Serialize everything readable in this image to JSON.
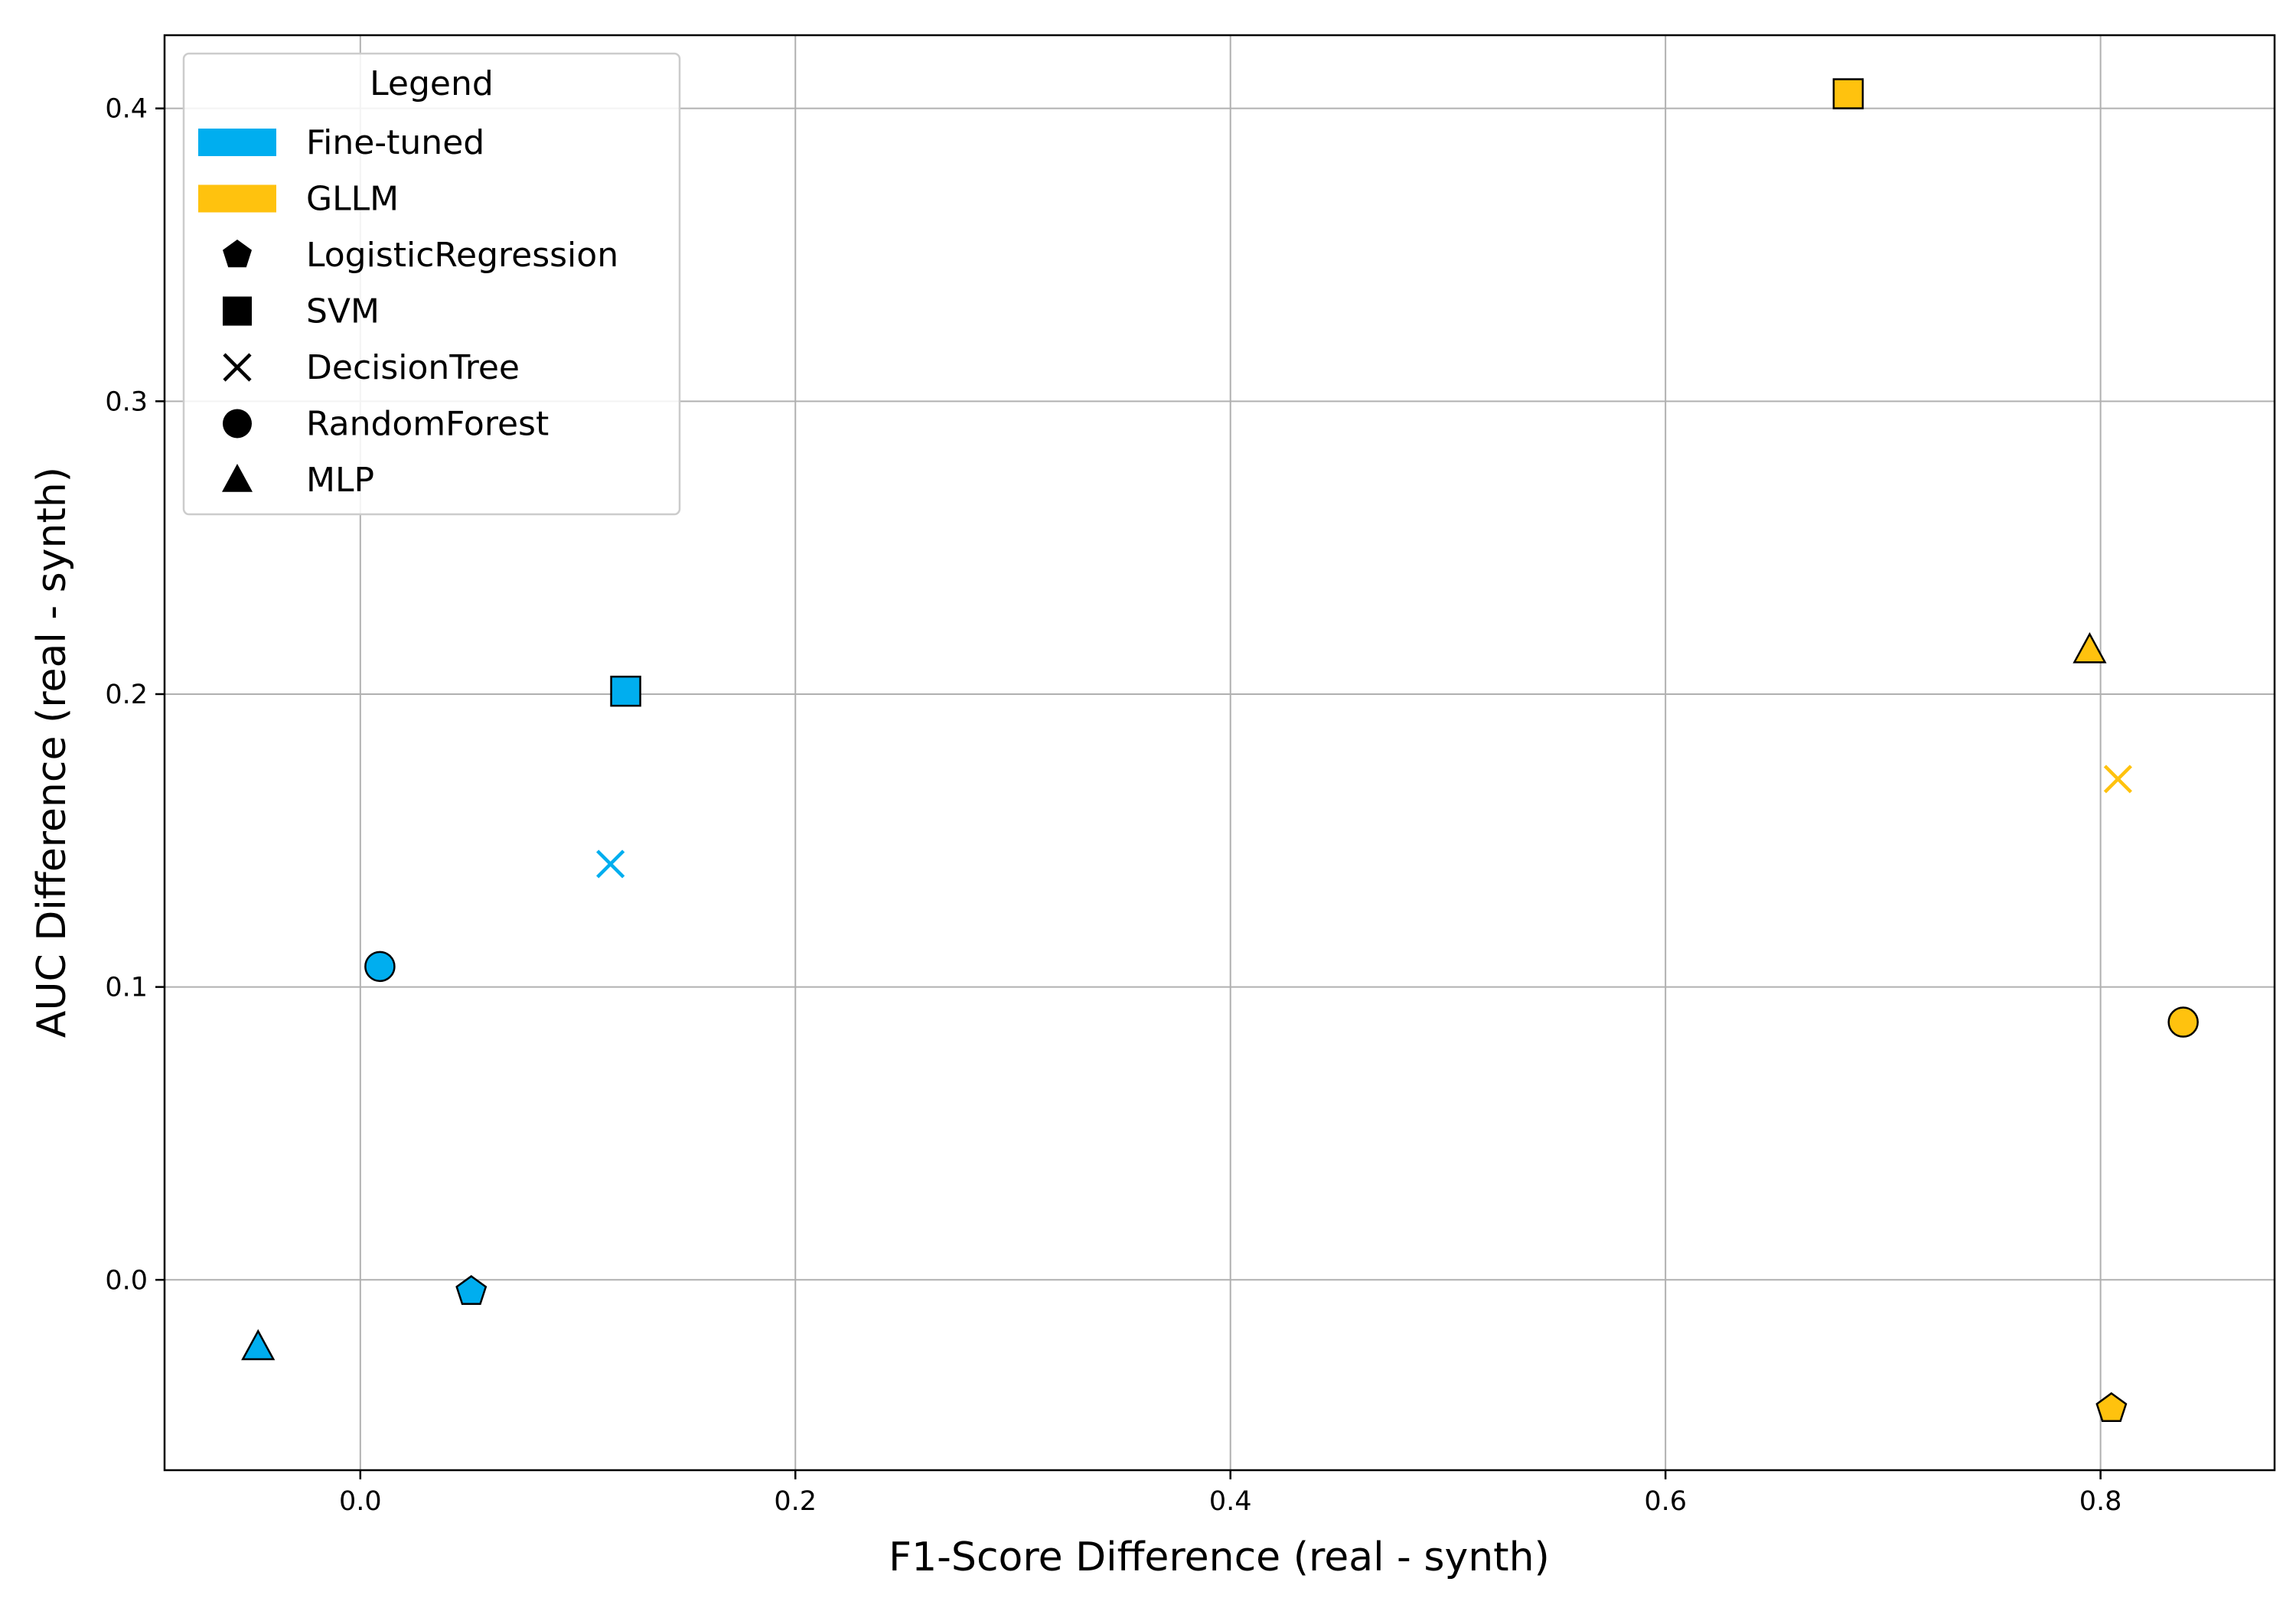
{
  "chart_data": {
    "type": "scatter",
    "xlabel": "F1-Score Difference (real - synth)",
    "ylabel": "AUC Difference (real - synth)",
    "xlim": [
      -0.09,
      0.88
    ],
    "ylim": [
      -0.065,
      0.425
    ],
    "xticks": [
      0.0,
      0.2,
      0.4,
      0.6,
      0.8
    ],
    "yticks": [
      0.0,
      0.1,
      0.2,
      0.3,
      0.4
    ],
    "xtick_labels": [
      "0.0",
      "0.2",
      "0.4",
      "0.6",
      "0.8"
    ],
    "ytick_labels": [
      "0.0",
      "0.1",
      "0.2",
      "0.3",
      "0.4"
    ],
    "grid": true,
    "legend": {
      "title": "Legend",
      "position": "top-left",
      "groups": [
        {
          "name": "Fine-tuned",
          "color": "#00AEEF"
        },
        {
          "name": "GLLM",
          "color": "#FFC20E"
        }
      ],
      "markers": [
        {
          "name": "LogisticRegression",
          "shape": "pentagon"
        },
        {
          "name": "SVM",
          "shape": "square"
        },
        {
          "name": "DecisionTree",
          "shape": "x"
        },
        {
          "name": "RandomForest",
          "shape": "circle"
        },
        {
          "name": "MLP",
          "shape": "triangle"
        }
      ]
    },
    "series": [
      {
        "name": "Fine-tuned",
        "color": "#00AEEF",
        "points": [
          {
            "model": "LogisticRegression",
            "shape": "pentagon",
            "x": 0.051,
            "y": -0.004
          },
          {
            "model": "SVM",
            "shape": "square",
            "x": 0.122,
            "y": 0.201
          },
          {
            "model": "DecisionTree",
            "shape": "x",
            "x": 0.115,
            "y": 0.142
          },
          {
            "model": "RandomForest",
            "shape": "circle",
            "x": 0.009,
            "y": 0.107
          },
          {
            "model": "MLP",
            "shape": "triangle",
            "x": -0.047,
            "y": -0.023
          }
        ]
      },
      {
        "name": "GLLM",
        "color": "#FFC20E",
        "points": [
          {
            "model": "LogisticRegression",
            "shape": "pentagon",
            "x": 0.805,
            "y": -0.044
          },
          {
            "model": "SVM",
            "shape": "square",
            "x": 0.684,
            "y": 0.405
          },
          {
            "model": "DecisionTree",
            "shape": "x",
            "x": 0.808,
            "y": 0.171
          },
          {
            "model": "RandomForest",
            "shape": "circle",
            "x": 0.838,
            "y": 0.088
          },
          {
            "model": "MLP",
            "shape": "triangle",
            "x": 0.795,
            "y": 0.215
          }
        ]
      }
    ]
  }
}
